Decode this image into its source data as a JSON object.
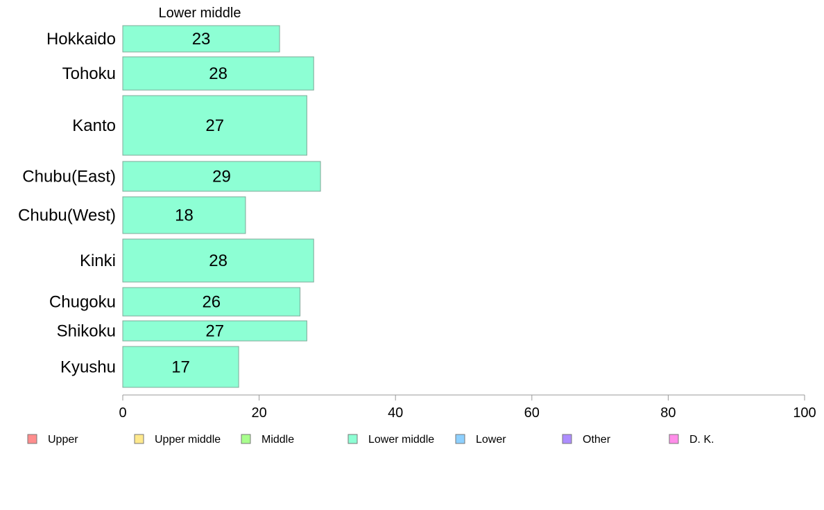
{
  "chart_data": {
    "type": "bar",
    "orientation": "horizontal",
    "title": "Lower middle",
    "categories": [
      "Hokkaido",
      "Tohoku",
      "Kanto",
      "Chubu(East)",
      "Chubu(West)",
      "Kinki",
      "Chugoku",
      "Shikoku",
      "Kyushu"
    ],
    "values": [
      23,
      28,
      27,
      29,
      18,
      28,
      26,
      27,
      17
    ],
    "xlim": [
      0,
      100
    ],
    "xticks": [
      0,
      20,
      40,
      60,
      80,
      100
    ],
    "bar_color": "#8dffd4",
    "legend": {
      "placement": "bottom",
      "items": [
        {
          "label": "Upper",
          "color": "#ff8d8d"
        },
        {
          "label": "Upper middle",
          "color": "#ffe98d"
        },
        {
          "label": "Middle",
          "color": "#a8ff8d"
        },
        {
          "label": "Lower middle",
          "color": "#8dffd4"
        },
        {
          "label": "Lower",
          "color": "#8dd0ff"
        },
        {
          "label": "Other",
          "color": "#ad8dff"
        },
        {
          "label": "D. K.",
          "color": "#ff8de9"
        }
      ]
    }
  }
}
